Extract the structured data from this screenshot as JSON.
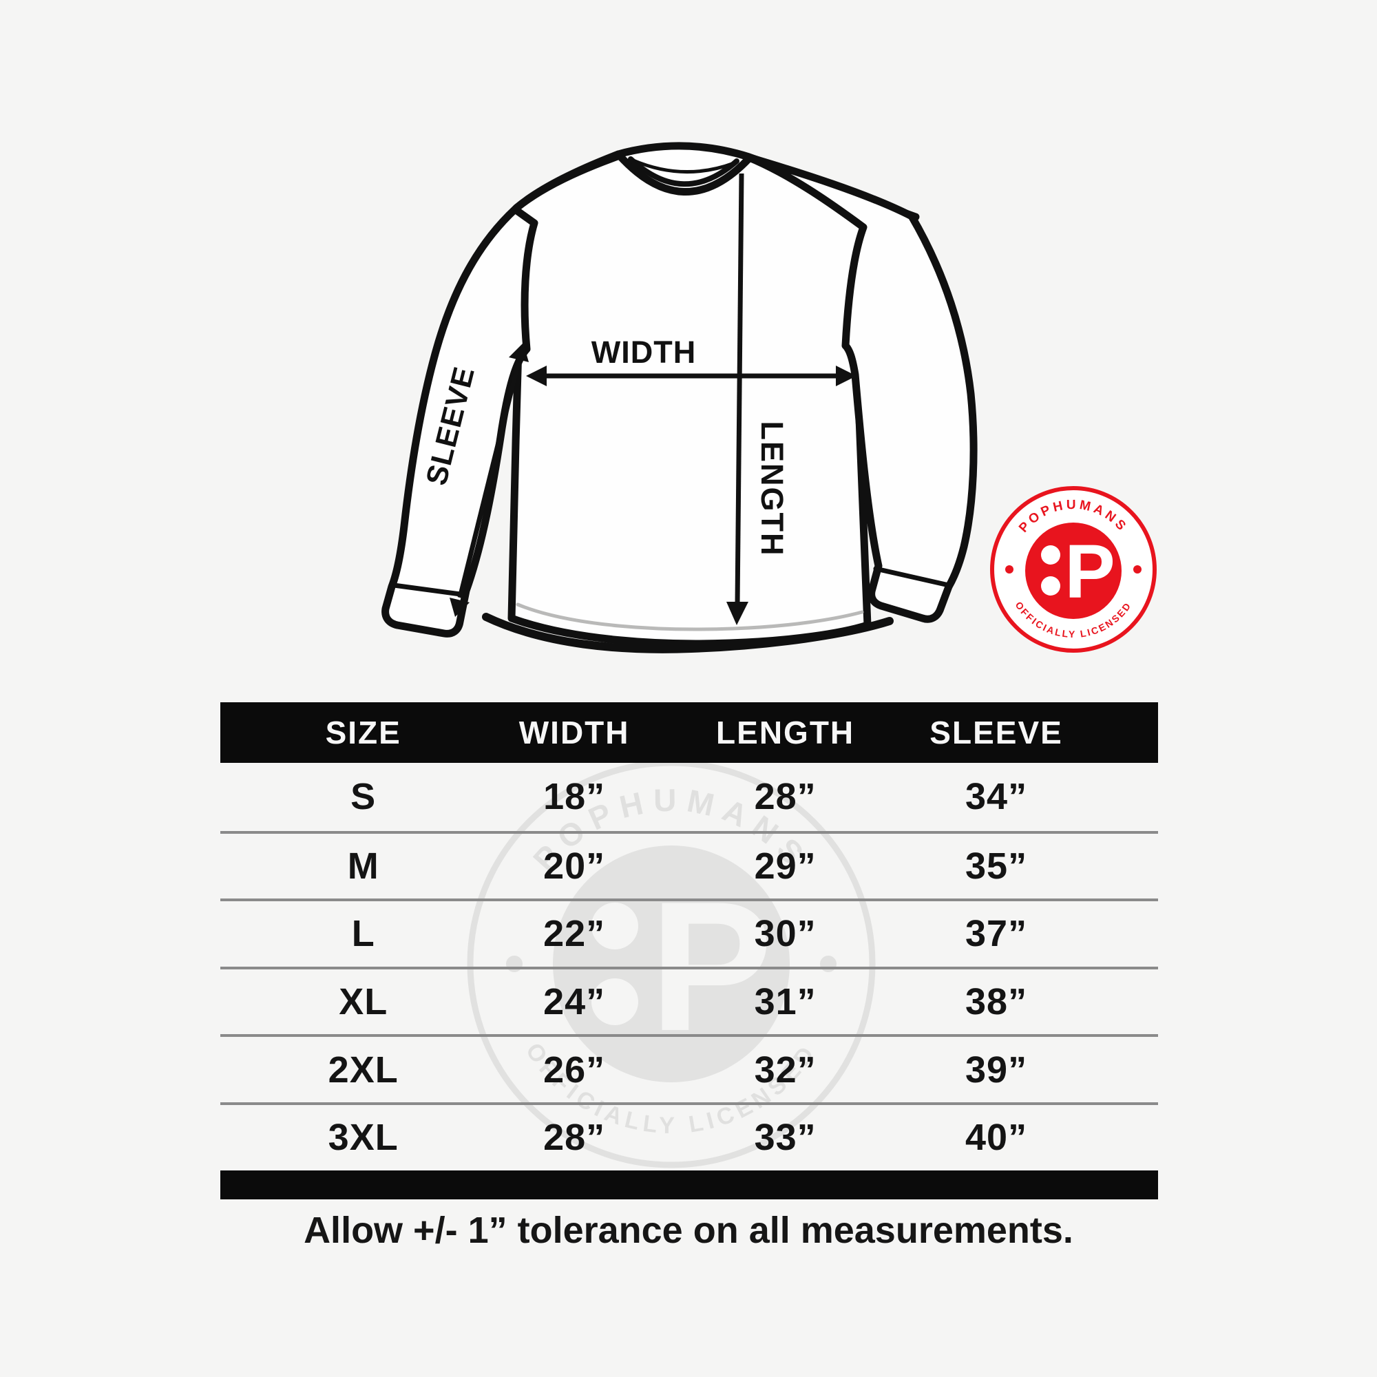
{
  "page": {
    "background": "#f5f5f4"
  },
  "diagram": {
    "labels": {
      "width": "WIDTH",
      "length": "LENGTH",
      "sleeve": "SLEEVE"
    },
    "line_color": "#101010",
    "shirt_fill": "#fefefe"
  },
  "badge": {
    "brand": "POPHUMANS",
    "tagline": "OFFICIALLY LICENSED",
    "monogram": "P",
    "color": "#e8141e"
  },
  "watermark": {
    "brand": "POPHUMANS",
    "tagline": "OFFICIALLY LICENSED",
    "monogram": "P",
    "color": "#e1e1e0"
  },
  "size_chart": {
    "headers": [
      "SIZE",
      "WIDTH",
      "LENGTH",
      "SLEEVE"
    ],
    "rows": [
      {
        "size": "S",
        "width": "18”",
        "length": "28”",
        "sleeve": "34”"
      },
      {
        "size": "M",
        "width": "20”",
        "length": "29”",
        "sleeve": "35”"
      },
      {
        "size": "L",
        "width": "22”",
        "length": "30”",
        "sleeve": "37”"
      },
      {
        "size": "XL",
        "width": "24”",
        "length": "31”",
        "sleeve": "38”"
      },
      {
        "size": "2XL",
        "width": "26”",
        "length": "32”",
        "sleeve": "39”"
      },
      {
        "size": "3XL",
        "width": "28”",
        "length": "33”",
        "sleeve": "40”"
      }
    ]
  },
  "footnote": "Allow +/- 1” tolerance on all measurements.",
  "chart_data": {
    "type": "table",
    "title": "Long sleeve shirt size chart",
    "columns": [
      "SIZE",
      "WIDTH",
      "LENGTH",
      "SLEEVE"
    ],
    "rows": [
      [
        "S",
        18,
        28,
        34
      ],
      [
        "M",
        20,
        29,
        35
      ],
      [
        "L",
        22,
        30,
        37
      ],
      [
        "XL",
        24,
        31,
        38
      ],
      [
        "2XL",
        26,
        32,
        39
      ],
      [
        "3XL",
        28,
        33,
        40
      ]
    ],
    "units": "inches",
    "note": "Allow +/- 1” tolerance on all measurements."
  }
}
